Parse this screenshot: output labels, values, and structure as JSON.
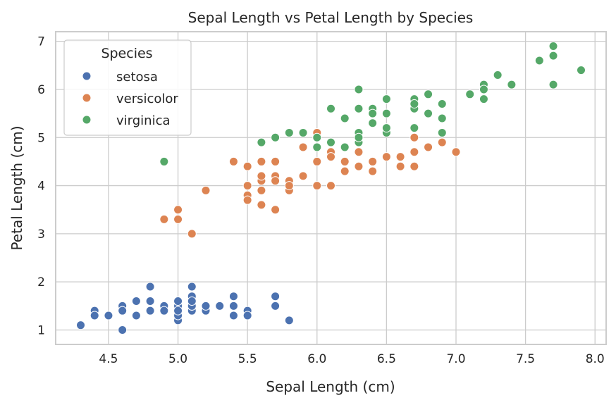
{
  "chart_data": {
    "type": "scatter",
    "title": "Sepal Length vs Petal Length by Species",
    "xlabel": "Sepal Length (cm)",
    "ylabel": "Petal Length (cm)",
    "xlim": [
      4.12,
      8.08
    ],
    "ylim": [
      0.7,
      7.2
    ],
    "xticks": [
      "4.5",
      "5.0",
      "5.5",
      "6.0",
      "6.5",
      "7.0",
      "7.5",
      "8.0"
    ],
    "yticks": [
      "1",
      "2",
      "3",
      "4",
      "5",
      "6",
      "7"
    ],
    "grid": true,
    "legend": {
      "title": "Species",
      "placement": "top-left"
    },
    "series": [
      {
        "name": "setosa",
        "color": "#4c72b0",
        "points": [
          [
            5.1,
            1.4
          ],
          [
            4.9,
            1.4
          ],
          [
            4.7,
            1.3
          ],
          [
            4.6,
            1.5
          ],
          [
            5.0,
            1.4
          ],
          [
            5.4,
            1.7
          ],
          [
            4.6,
            1.4
          ],
          [
            5.0,
            1.5
          ],
          [
            4.4,
            1.4
          ],
          [
            4.9,
            1.5
          ],
          [
            5.4,
            1.5
          ],
          [
            4.8,
            1.6
          ],
          [
            4.8,
            1.4
          ],
          [
            4.3,
            1.1
          ],
          [
            5.8,
            1.2
          ],
          [
            5.7,
            1.5
          ],
          [
            5.4,
            1.3
          ],
          [
            5.1,
            1.4
          ],
          [
            5.7,
            1.7
          ],
          [
            5.1,
            1.5
          ],
          [
            5.4,
            1.7
          ],
          [
            5.1,
            1.5
          ],
          [
            4.6,
            1.0
          ],
          [
            5.1,
            1.7
          ],
          [
            4.8,
            1.9
          ],
          [
            5.0,
            1.6
          ],
          [
            5.0,
            1.6
          ],
          [
            5.2,
            1.5
          ],
          [
            5.2,
            1.4
          ],
          [
            4.7,
            1.6
          ],
          [
            4.8,
            1.6
          ],
          [
            5.4,
            1.5
          ],
          [
            5.2,
            1.5
          ],
          [
            5.5,
            1.4
          ],
          [
            4.9,
            1.5
          ],
          [
            5.0,
            1.2
          ],
          [
            5.5,
            1.3
          ],
          [
            4.9,
            1.4
          ],
          [
            4.4,
            1.3
          ],
          [
            5.1,
            1.5
          ],
          [
            5.0,
            1.3
          ],
          [
            4.5,
            1.3
          ],
          [
            4.4,
            1.3
          ],
          [
            5.0,
            1.6
          ],
          [
            5.1,
            1.9
          ],
          [
            4.8,
            1.4
          ],
          [
            5.1,
            1.6
          ],
          [
            4.6,
            1.4
          ],
          [
            5.3,
            1.5
          ],
          [
            5.0,
            1.4
          ]
        ]
      },
      {
        "name": "versicolor",
        "color": "#dd8452",
        "points": [
          [
            7.0,
            4.7
          ],
          [
            6.4,
            4.5
          ],
          [
            6.9,
            4.9
          ],
          [
            5.5,
            4.0
          ],
          [
            6.5,
            4.6
          ],
          [
            5.7,
            4.5
          ],
          [
            6.3,
            4.7
          ],
          [
            4.9,
            3.3
          ],
          [
            6.6,
            4.6
          ],
          [
            5.2,
            3.9
          ],
          [
            5.0,
            3.5
          ],
          [
            5.9,
            4.2
          ],
          [
            6.0,
            4.0
          ],
          [
            6.1,
            4.7
          ],
          [
            5.6,
            3.6
          ],
          [
            6.7,
            4.4
          ],
          [
            5.6,
            4.5
          ],
          [
            5.8,
            4.1
          ],
          [
            6.2,
            4.5
          ],
          [
            5.6,
            3.9
          ],
          [
            5.9,
            4.8
          ],
          [
            6.1,
            4.0
          ],
          [
            6.3,
            4.9
          ],
          [
            6.1,
            4.7
          ],
          [
            6.4,
            4.3
          ],
          [
            6.6,
            4.4
          ],
          [
            6.8,
            4.8
          ],
          [
            6.7,
            5.0
          ],
          [
            6.0,
            4.5
          ],
          [
            5.7,
            3.5
          ],
          [
            5.5,
            3.8
          ],
          [
            5.5,
            3.7
          ],
          [
            5.8,
            3.9
          ],
          [
            6.0,
            5.1
          ],
          [
            5.4,
            4.5
          ],
          [
            6.0,
            4.5
          ],
          [
            6.7,
            4.7
          ],
          [
            6.3,
            4.4
          ],
          [
            5.6,
            4.1
          ],
          [
            5.5,
            4.0
          ],
          [
            5.5,
            4.4
          ],
          [
            6.1,
            4.6
          ],
          [
            5.8,
            4.0
          ],
          [
            5.0,
            3.3
          ],
          [
            5.6,
            4.2
          ],
          [
            5.7,
            4.2
          ],
          [
            5.7,
            4.2
          ],
          [
            6.2,
            4.3
          ],
          [
            5.1,
            3.0
          ],
          [
            5.7,
            4.1
          ]
        ]
      },
      {
        "name": "virginica",
        "color": "#55a868",
        "points": [
          [
            6.3,
            6.0
          ],
          [
            5.8,
            5.1
          ],
          [
            7.1,
            5.9
          ],
          [
            6.3,
            5.6
          ],
          [
            6.5,
            5.8
          ],
          [
            7.6,
            6.6
          ],
          [
            4.9,
            4.5
          ],
          [
            7.3,
            6.3
          ],
          [
            6.7,
            5.8
          ],
          [
            7.2,
            6.1
          ],
          [
            6.5,
            5.1
          ],
          [
            6.4,
            5.3
          ],
          [
            6.8,
            5.5
          ],
          [
            5.7,
            5.0
          ],
          [
            5.8,
            5.1
          ],
          [
            6.4,
            5.3
          ],
          [
            6.5,
            5.5
          ],
          [
            7.7,
            6.7
          ],
          [
            7.7,
            6.9
          ],
          [
            6.0,
            5.0
          ],
          [
            6.9,
            5.7
          ],
          [
            5.6,
            4.9
          ],
          [
            7.7,
            6.7
          ],
          [
            6.3,
            4.9
          ],
          [
            6.7,
            5.7
          ],
          [
            7.2,
            6.0
          ],
          [
            6.2,
            4.8
          ],
          [
            6.1,
            4.9
          ],
          [
            6.4,
            5.6
          ],
          [
            7.2,
            5.8
          ],
          [
            7.4,
            6.1
          ],
          [
            7.9,
            6.4
          ],
          [
            6.4,
            5.6
          ],
          [
            6.3,
            5.1
          ],
          [
            6.1,
            5.6
          ],
          [
            7.7,
            6.1
          ],
          [
            6.3,
            5.6
          ],
          [
            6.4,
            5.5
          ],
          [
            6.0,
            4.8
          ],
          [
            6.9,
            5.4
          ],
          [
            6.7,
            5.6
          ],
          [
            6.9,
            5.1
          ],
          [
            5.8,
            5.1
          ],
          [
            6.8,
            5.9
          ],
          [
            6.7,
            5.7
          ],
          [
            6.7,
            5.2
          ],
          [
            6.3,
            5.0
          ],
          [
            6.5,
            5.2
          ],
          [
            6.2,
            5.4
          ],
          [
            5.9,
            5.1
          ]
        ]
      }
    ]
  }
}
